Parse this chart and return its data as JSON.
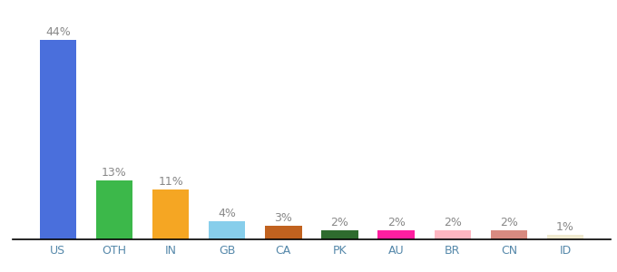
{
  "categories": [
    "US",
    "OTH",
    "IN",
    "GB",
    "CA",
    "PK",
    "AU",
    "BR",
    "CN",
    "ID"
  ],
  "values": [
    44,
    13,
    11,
    4,
    3,
    2,
    2,
    2,
    2,
    1
  ],
  "labels": [
    "44%",
    "13%",
    "11%",
    "4%",
    "3%",
    "2%",
    "2%",
    "2%",
    "2%",
    "1%"
  ],
  "bar_colors": [
    "#4a6fdc",
    "#3cb84a",
    "#f5a623",
    "#87ceeb",
    "#c1621f",
    "#2e6b2e",
    "#ff1fa0",
    "#ffb6c1",
    "#d88a80",
    "#f0ead0"
  ],
  "ylim": [
    0,
    48
  ],
  "background_color": "#ffffff",
  "label_fontsize": 9,
  "tick_fontsize": 9,
  "label_color": "#888888",
  "tick_color": "#5588aa"
}
